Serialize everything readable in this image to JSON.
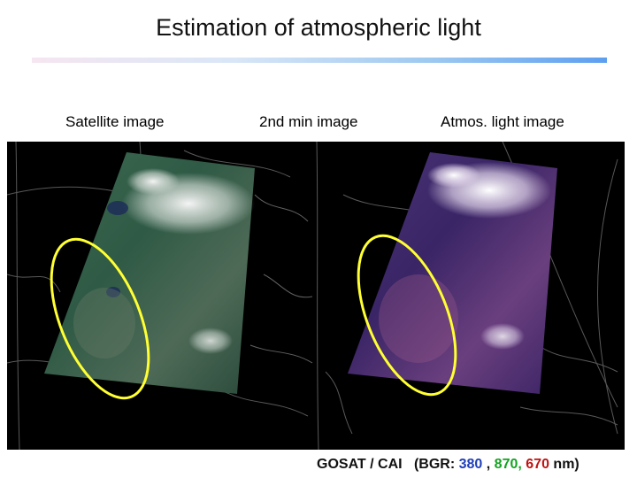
{
  "slide": {
    "title": "Estimation of atmospheric light"
  },
  "panels": [
    {
      "label": "Satellite image"
    },
    {
      "label": "2nd min image"
    },
    {
      "label": "Atmos. light image"
    }
  ],
  "caption": {
    "source": "GOSAT / CAI",
    "bands_prefix": "(BGR:",
    "band_blue": "380",
    "sep1": ",",
    "band_green": "870,",
    "band_red": "670",
    "suffix": "nm)"
  },
  "colors": {
    "blue_band": "#1f3fb8",
    "green_band": "#13a320",
    "red_band": "#c11212",
    "highlight_ellipse": "#ffff33"
  }
}
